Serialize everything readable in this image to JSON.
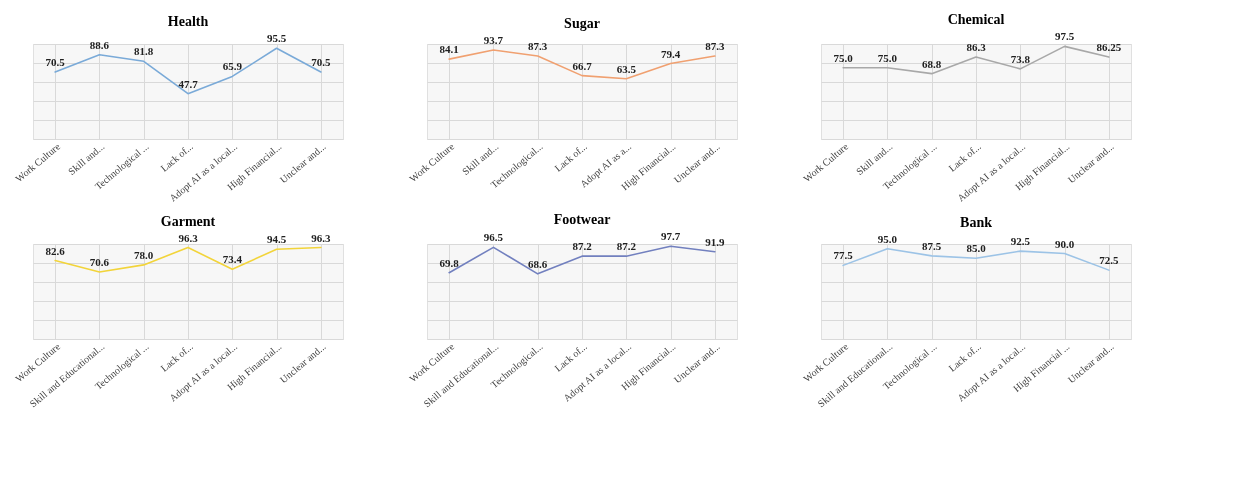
{
  "chart_data": [
    {
      "type": "line",
      "title": "Health",
      "categories": [
        "Work Culture",
        "Skill  and...",
        "Technological ...",
        "Lack of...",
        "Adopt AI as a local...",
        "High Financial...",
        "Unclear and..."
      ],
      "values": [
        70.5,
        88.6,
        81.8,
        47.7,
        65.9,
        95.5,
        70.5
      ],
      "value_labels": [
        "70.5",
        "88.6",
        "81.8",
        "47.7",
        "65.9",
        "95.5",
        "70.5"
      ],
      "color": "#7aaad8",
      "grid": true,
      "tick_labels": "x",
      "marker": "none",
      "line_style": "solid"
    },
    {
      "type": "line",
      "title": "Sugar",
      "categories": [
        "Work Culture",
        "Skill and...",
        "Technological...",
        "Lack of...",
        "Adopt AI as a...",
        "High Financial...",
        "Unclear and..."
      ],
      "values": [
        84.1,
        93.7,
        87.3,
        66.7,
        63.5,
        79.4,
        87.3
      ],
      "value_labels": [
        "84.1",
        "93.7",
        "87.3",
        "66.7",
        "63.5",
        "79.4",
        "87.3"
      ],
      "color": "#f0a070",
      "grid": true,
      "tick_labels": "x",
      "marker": "none",
      "line_style": "solid"
    },
    {
      "type": "line",
      "title": "Chemical",
      "categories": [
        "Work Culture",
        "Skill  and...",
        "Technological ...",
        "Lack of...",
        "Adopt AI as a local...",
        "High Financial...",
        "Unclear and..."
      ],
      "values": [
        75.0,
        75.0,
        68.8,
        86.3,
        73.8,
        97.5,
        86.25
      ],
      "value_labels": [
        "75.0",
        "75.0",
        "68.8",
        "86.3",
        "73.8",
        "97.5",
        "86.25"
      ],
      "color": "#a8a8a8",
      "grid": true,
      "tick_labels": "x",
      "marker": "none",
      "line_style": "solid"
    },
    {
      "type": "line",
      "title": "Garment",
      "categories": [
        "Work Culture",
        "Skill  and Educational...",
        "Technological ...",
        "Lack of...",
        "Adopt AI as a local...",
        "High Financial...",
        "Unclear and..."
      ],
      "values": [
        82.6,
        70.6,
        78.0,
        96.3,
        73.4,
        94.5,
        96.3
      ],
      "value_labels": [
        "82.6",
        "70.6",
        "78.0",
        "96.3",
        "73.4",
        "94.5",
        "96.3"
      ],
      "color": "#f2d43a",
      "grid": true,
      "tick_labels": "x",
      "marker": "none",
      "line_style": "solid"
    },
    {
      "type": "line",
      "title": "Footwear",
      "categories": [
        "Work Culture",
        "Skill  and Educational...",
        "Technological...",
        "Lack of...",
        "Adopt AI as a local...",
        "High Financial...",
        "Unclear and..."
      ],
      "values": [
        69.8,
        96.5,
        68.6,
        87.2,
        87.2,
        97.7,
        91.9
      ],
      "value_labels": [
        "69.8",
        "96.5",
        "68.6",
        "87.2",
        "87.2",
        "97.7",
        "91.9"
      ],
      "color": "#7280bf",
      "grid": true,
      "tick_labels": "x",
      "marker": "none",
      "line_style": "solid"
    },
    {
      "type": "line",
      "title": "Bank",
      "categories": [
        "Work Culture",
        "Skill  and Educational...",
        "Technological ...",
        "Lack of...",
        "Adopt AI as a local...",
        "High Financial ...",
        "Unclear and..."
      ],
      "values": [
        77.5,
        95.0,
        87.5,
        85.0,
        92.5,
        90.0,
        72.5
      ],
      "value_labels": [
        "77.5",
        "95.0",
        "87.5",
        "85.0",
        "92.5",
        "90.0",
        "72.5"
      ],
      "color": "#9cc3e6",
      "grid": true,
      "tick_labels": "x",
      "marker": "none",
      "line_style": "solid"
    }
  ]
}
